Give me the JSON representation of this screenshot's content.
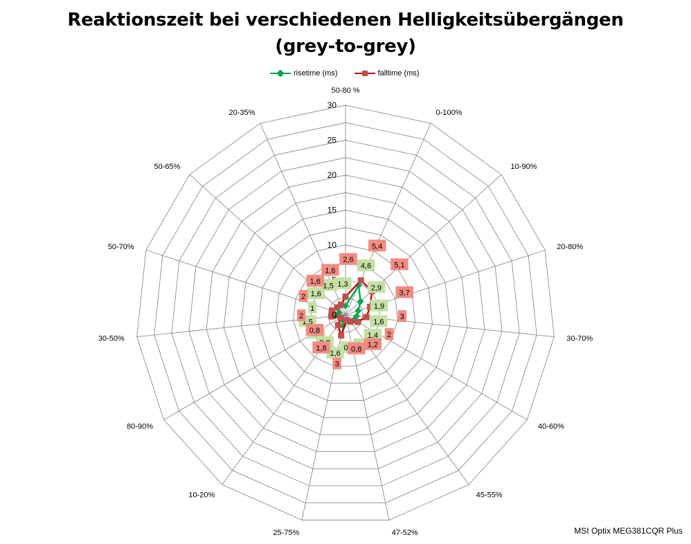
{
  "chart_data": {
    "type": "radar",
    "title_line1": "Reaktionszeit bei verschiedenen Helligkeitsübergängen",
    "title_line2": "(grey-to-grey)",
    "categories": [
      "50-80 %",
      "0-100%",
      "10-90%",
      "20-80%",
      "30-70%",
      "40-60%",
      "45-55%",
      "47-52%",
      "25-75%",
      "10-20%",
      "80-90%",
      "30-50%",
      "50-70%",
      "50-65%",
      "20-35%"
    ],
    "rlim": [
      0,
      30
    ],
    "rticks": [
      "0",
      "5",
      "10",
      "15",
      "20",
      "25",
      "30"
    ],
    "grid": true,
    "legend_position": "top",
    "series": [
      {
        "name": "risetime (ms)",
        "color": "#00a651",
        "label_bg": "#c5e0a5",
        "values": [
          1.3,
          4.6,
          2.9,
          1.9,
          1.6,
          1.4,
          1.2,
          0.8,
          1.6,
          0.8,
          0.8,
          1.5,
          1,
          1.6,
          1.5
        ]
      },
      {
        "name": "falltime (ms)",
        "color": "#c00000",
        "label_bg": "#f28b82",
        "values": [
          2.6,
          5.4,
          5.1,
          3.7,
          3,
          2,
          1.2,
          0.8,
          3,
          1.8,
          0.8,
          2,
          2,
          1.6,
          1.6
        ]
      }
    ]
  },
  "footer": {
    "text": "MSI Optix MEG381CQR Plus"
  }
}
